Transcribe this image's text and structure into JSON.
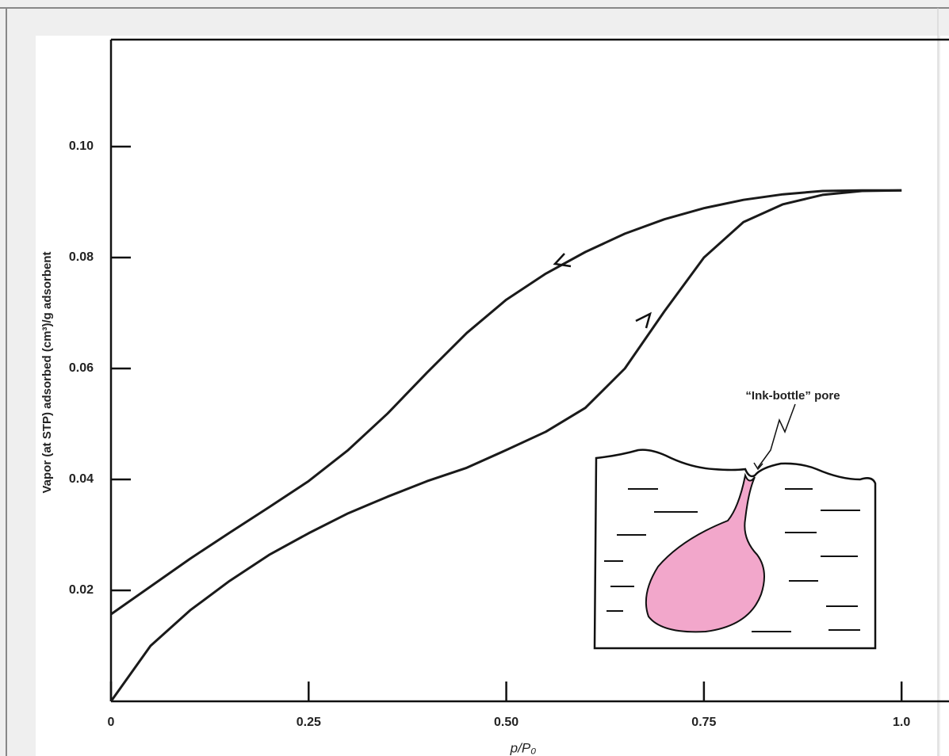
{
  "chart_data": {
    "type": "line",
    "x_label": "p/P₀",
    "y_label": "Vapor (at STP) adsorbed (cm³)/g adsorbent",
    "annotation": "“Ink-bottle” pore",
    "x": [
      0,
      0.05,
      0.1,
      0.15,
      0.2,
      0.25,
      0.3,
      0.35,
      0.4,
      0.45,
      0.5,
      0.55,
      0.6,
      0.65,
      0.7,
      0.75,
      0.8,
      0.85,
      0.9,
      0.95,
      1.0
    ],
    "series": [
      {
        "color": "#1a1a1a",
        "values": [
          0.0,
          0.01,
          0.0164,
          0.0217,
          0.0264,
          0.0303,
          0.0339,
          0.0369,
          0.0397,
          0.0421,
          0.0453,
          0.0486,
          0.0529,
          0.06,
          0.0703,
          0.08,
          0.0864,
          0.0896,
          0.0913,
          0.092,
          0.0921
        ]
      },
      {
        "color": "#1a1a1a",
        "values": [
          0.0157,
          0.0207,
          0.0257,
          0.0304,
          0.035,
          0.0397,
          0.0453,
          0.0519,
          0.0593,
          0.0664,
          0.0724,
          0.0771,
          0.081,
          0.0843,
          0.0869,
          0.0889,
          0.0904,
          0.0914,
          0.092,
          0.0921,
          0.0921
        ]
      }
    ],
    "xlim": [
      0,
      1.06
    ],
    "ylim": [
      0,
      0.12
    ],
    "xticks": [
      0,
      0.25,
      {
        "value": 0.5,
        "label": "0.50"
      },
      0.75,
      {
        "value": 1,
        "label": "1.0"
      }
    ],
    "yticks": [
      0.02,
      0.04,
      0.06,
      0.08,
      {
        "value": 0.1,
        "label": "0.10"
      }
    ]
  }
}
